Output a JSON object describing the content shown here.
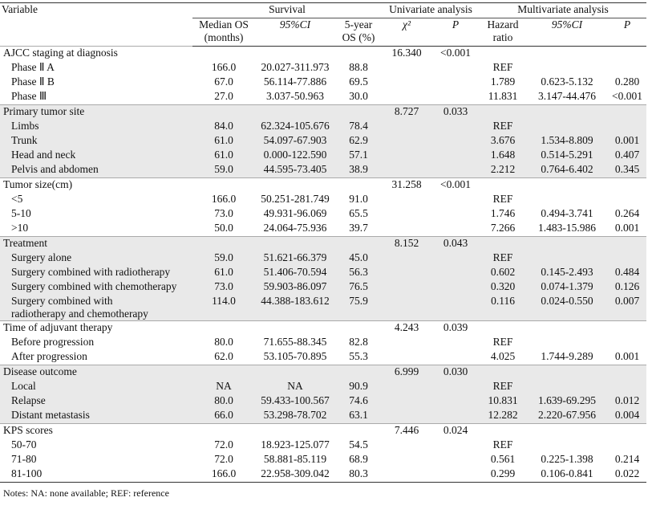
{
  "table": {
    "header_groups": [
      "Survival",
      "Univariate analysis",
      "Multivariate analysis"
    ],
    "columns": [
      "Variable",
      "Median OS\n(months)",
      "95%CI",
      "5-year\nOS (%)",
      "χ²",
      "P",
      "Hazard\nratio",
      "95%CI",
      "P"
    ],
    "sections": [
      {
        "name": "AJCC staging at diagnosis",
        "chi2": "16.340",
        "p": "<0.001",
        "rows": [
          [
            "Phase Ⅱ A",
            "166.0",
            "20.027-311.973",
            "88.8",
            "REF",
            null,
            null
          ],
          [
            "Phase Ⅱ B",
            "67.0",
            "56.114-77.886",
            "69.5",
            "1.789",
            "0.623-5.132",
            "0.280"
          ],
          [
            "Phase Ⅲ",
            "27.0",
            "3.037-50.963",
            "30.0",
            "11.831",
            "3.147-44.476",
            "<0.001"
          ]
        ]
      },
      {
        "name": "Primary tumor site",
        "chi2": "8.727",
        "p": "0.033",
        "rows": [
          [
            "Limbs",
            "84.0",
            "62.324-105.676",
            "78.4",
            "REF",
            null,
            null
          ],
          [
            "Trunk",
            "61.0",
            "54.097-67.903",
            "62.9",
            "3.676",
            "1.534-8.809",
            "0.001"
          ],
          [
            "Head and neck",
            "61.0",
            "0.000-122.590",
            "57.1",
            "1.648",
            "0.514-5.291",
            "0.407"
          ],
          [
            "Pelvis and abdomen",
            "59.0",
            "44.595-73.405",
            "38.9",
            "2.212",
            "0.764-6.402",
            "0.345"
          ]
        ]
      },
      {
        "name": "Tumor size(cm)",
        "chi2": "31.258",
        "p": "<0.001",
        "rows": [
          [
            "<5",
            "166.0",
            "50.251-281.749",
            "91.0",
            "REF",
            null,
            null
          ],
          [
            "5-10",
            "73.0",
            "49.931-96.069",
            "65.5",
            "1.746",
            "0.494-3.741",
            "0.264"
          ],
          [
            ">10",
            "50.0",
            "24.064-75.936",
            "39.7",
            "7.266",
            "1.483-15.986",
            "0.001"
          ]
        ]
      },
      {
        "name": "Treatment",
        "chi2": "8.152",
        "p": "0.043",
        "rows": [
          [
            "Surgery alone",
            "59.0",
            "51.621-66.379",
            "45.0",
            "REF",
            null,
            null
          ],
          [
            "Surgery combined with radiotherapy",
            "61.0",
            "51.406-70.594",
            "56.3",
            "0.602",
            "0.145-2.493",
            "0.484"
          ],
          [
            "Surgery combined with chemotherapy",
            "73.0",
            "59.903-86.097",
            "76.5",
            "0.320",
            "0.074-1.379",
            "0.126"
          ],
          [
            "Surgery combined with\n  radiotherapy and chemotherapy",
            "114.0",
            "44.388-183.612",
            "75.9",
            "0.116",
            "0.024-0.550",
            "0.007"
          ]
        ]
      },
      {
        "name": "Time of adjuvant therapy",
        "chi2": "4.243",
        "p": "0.039",
        "rows": [
          [
            "Before progression",
            "80.0",
            "71.655-88.345",
            "82.8",
            "REF",
            null,
            null
          ],
          [
            "After progression",
            "62.0",
            "53.105-70.895",
            "55.3",
            "4.025",
            "1.744-9.289",
            "0.001"
          ]
        ]
      },
      {
        "name": "Disease outcome",
        "chi2": "6.999",
        "p": "0.030",
        "rows": [
          [
            "Local",
            "NA",
            "NA",
            "90.9",
            "REF",
            null,
            null
          ],
          [
            "Relapse",
            "80.0",
            "59.433-100.567",
            "74.6",
            "10.831",
            "1.639-69.295",
            "0.012"
          ],
          [
            "Distant metastasis",
            "66.0",
            "53.298-78.702",
            "63.1",
            "12.282",
            "2.220-67.956",
            "0.004"
          ]
        ]
      },
      {
        "name": "KPS scores",
        "chi2": "7.446",
        "p": "0.024",
        "rows": [
          [
            "50-70",
            "72.0",
            "18.923-125.077",
            "54.5",
            "REF",
            null,
            null
          ],
          [
            "71-80",
            "72.0",
            "58.881-85.119",
            "68.9",
            "0.561",
            "0.225-1.398",
            "0.214"
          ],
          [
            "81-100",
            "166.0",
            "22.958-309.042",
            "80.3",
            "0.299",
            "0.106-0.841",
            "0.022"
          ]
        ]
      }
    ]
  },
  "notes": "Notes: NA: none available; REF: reference"
}
